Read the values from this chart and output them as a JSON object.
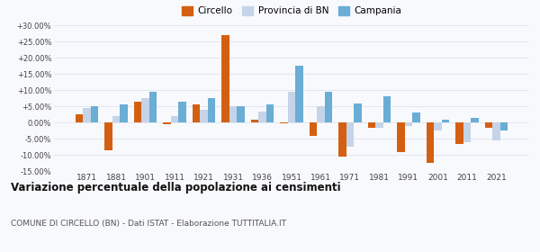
{
  "years": [
    1871,
    1881,
    1901,
    1911,
    1921,
    1931,
    1936,
    1951,
    1961,
    1971,
    1981,
    1991,
    2001,
    2011,
    2021
  ],
  "circello": [
    2.5,
    -8.5,
    6.5,
    -0.5,
    5.5,
    27.0,
    1.0,
    -0.3,
    -4.0,
    -10.5,
    -1.5,
    -9.0,
    -12.5,
    -6.5,
    -1.5
  ],
  "provincia_bn": [
    4.5,
    2.0,
    7.5,
    2.0,
    4.0,
    5.0,
    3.5,
    9.5,
    5.0,
    -7.5,
    -1.5,
    -1.0,
    -2.5,
    -6.0,
    -5.5
  ],
  "campania": [
    5.0,
    5.5,
    9.5,
    6.5,
    7.5,
    5.0,
    5.5,
    17.5,
    9.5,
    6.0,
    8.0,
    3.0,
    1.0,
    1.5,
    -2.5
  ],
  "color_circello": "#d45f13",
  "color_provincia": "#c5d4e8",
  "color_campania": "#6aadd5",
  "title": "Variazione percentuale della popolazione ai censimenti",
  "subtitle": "COMUNE DI CIRCELLO (BN) - Dati ISTAT - Elaborazione TUTTITALIA.IT",
  "ylim": [
    -15,
    30
  ],
  "yticks": [
    -15,
    -10,
    -5,
    0,
    5,
    10,
    15,
    20,
    25,
    30
  ],
  "background_color": "#f8f9fc",
  "grid_color": "#dde3ef"
}
